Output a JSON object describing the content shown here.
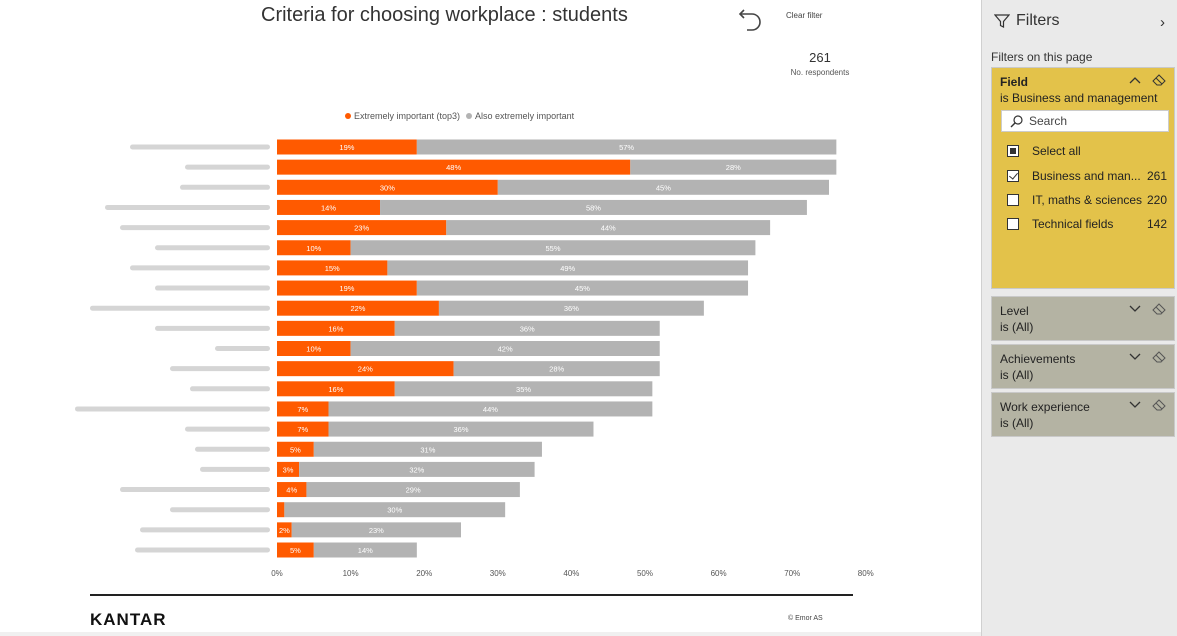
{
  "report": {
    "title": "Criteria for choosing workplace : students",
    "clear_filter_label": "Clear filter",
    "kpi_value": "261",
    "kpi_label": "No. respondents",
    "logo": "KANTAR",
    "copyright": "© Emor AS"
  },
  "chart_data": {
    "type": "bar",
    "orientation": "horizontal",
    "stacked": true,
    "categories_visible": false,
    "xlim": [
      0,
      80
    ],
    "x_ticks": [
      "0%",
      "10%",
      "20%",
      "30%",
      "40%",
      "50%",
      "60%",
      "70%",
      "80%"
    ],
    "legend_position": "top",
    "series": [
      {
        "name": "Extremely important (top3)",
        "color": "#ff5a00",
        "values": [
          19,
          48,
          30,
          14,
          23,
          10,
          15,
          19,
          22,
          16,
          10,
          24,
          16,
          7,
          7,
          5,
          3,
          4,
          1,
          2,
          5
        ],
        "labels": [
          "19%",
          "48%",
          "30%",
          "14%",
          "23%",
          "10%",
          "15%",
          "19%",
          "22%",
          "16%",
          "10%",
          "24%",
          "16%",
          "7%",
          "7%",
          "5%",
          "3%",
          "4%",
          "",
          "2%",
          "5%"
        ]
      },
      {
        "name": "Also extremely important",
        "color": "#b3b3b3",
        "values": [
          57,
          28,
          45,
          58,
          44,
          55,
          49,
          45,
          36,
          36,
          42,
          28,
          35,
          44,
          36,
          31,
          32,
          29,
          30,
          23,
          14
        ],
        "labels": [
          "57%",
          "28%",
          "45%",
          "58%",
          "44%",
          "55%",
          "49%",
          "45%",
          "36%",
          "36%",
          "42%",
          "28%",
          "35%",
          "44%",
          "36%",
          "31%",
          "32%",
          "29%",
          "30%",
          "23%",
          "14%"
        ]
      }
    ]
  },
  "filters": {
    "title": "Filters",
    "subtitle": "Filters on this page",
    "field_card": {
      "name": "Field",
      "summary": "is Business and management",
      "search_placeholder": "Search",
      "options": [
        {
          "label": "Select all",
          "count": "",
          "state": "partial"
        },
        {
          "label": "Business and man...",
          "count": "261",
          "state": "checked"
        },
        {
          "label": "IT, maths & sciences",
          "count": "220",
          "state": "unchecked"
        },
        {
          "label": "Technical fields",
          "count": "142",
          "state": "unchecked"
        }
      ]
    },
    "collapsed_cards": [
      {
        "name": "Level",
        "summary": "is (All)"
      },
      {
        "name": "Achievements",
        "summary": "is (All)"
      },
      {
        "name": "Work experience",
        "summary": "is (All)"
      }
    ]
  }
}
